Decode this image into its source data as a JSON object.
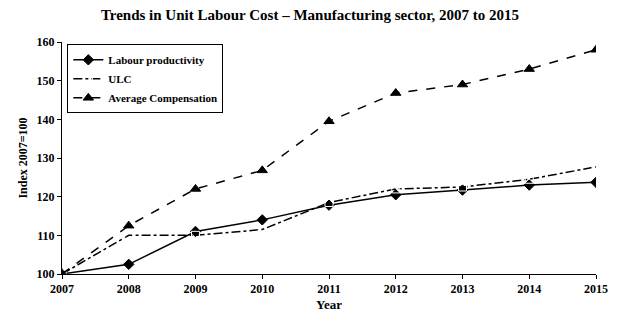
{
  "chart_data": {
    "type": "line",
    "title": "Trends in Unit Labour Cost – Manufacturing sector, 2007 to 2015",
    "x_label": "Year",
    "y_label": "Index 2007=100",
    "x": [
      2007,
      2008,
      2009,
      2010,
      2011,
      2012,
      2013,
      2014,
      2015
    ],
    "series": [
      {
        "name": "Labour productivity",
        "color": "#000000",
        "marker": "diamond",
        "line_style": "solid",
        "values": [
          100,
          102.5,
          111,
          114,
          117.8,
          120.5,
          121.7,
          123,
          123.7
        ]
      },
      {
        "name": "ULC",
        "color": "#000000",
        "marker": "square-open",
        "line_style": "dashdot",
        "values": [
          100,
          110,
          110,
          111.5,
          118.5,
          122,
          122.5,
          124.5,
          127.7
        ]
      },
      {
        "name": "Average Compensation",
        "color": "#000000",
        "marker": "triangle",
        "line_style": "dash",
        "values": [
          100,
          112.5,
          122,
          126.8,
          139.5,
          146.8,
          149,
          153,
          158
        ]
      }
    ],
    "xlim": [
      2007,
      2015
    ],
    "xticks": [
      2007,
      2008,
      2009,
      2010,
      2011,
      2012,
      2013,
      2014,
      2015
    ],
    "ylim": [
      100,
      160
    ],
    "yticks": [
      100,
      110,
      120,
      130,
      140,
      150,
      160
    ],
    "grid": false,
    "legend": "top left"
  }
}
